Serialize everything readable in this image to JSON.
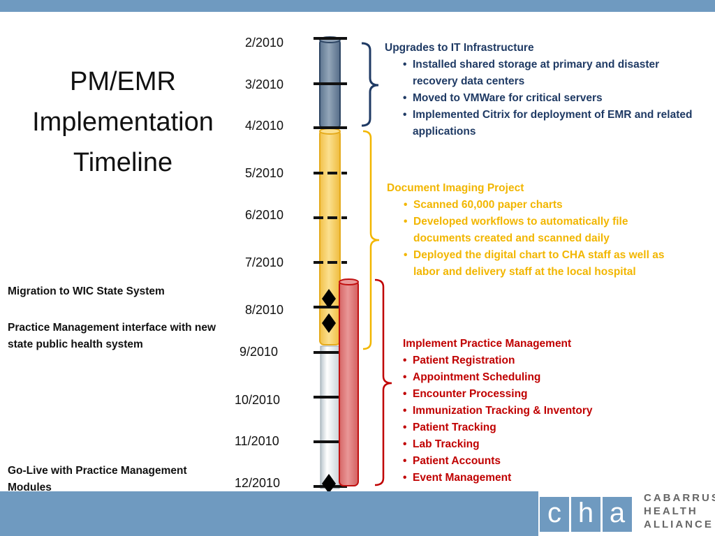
{
  "slide": {
    "title_lines": [
      "PM/EMR",
      "Implementation",
      "Timeline"
    ]
  },
  "timeline": {
    "dates": [
      "2/2010",
      "3/2010",
      "4/2010",
      "5/2010",
      "6/2010",
      "7/2010",
      "8/2010",
      "9/2010",
      "10/2010",
      "11/2010",
      "12/2010"
    ]
  },
  "phases": {
    "it_infrastructure": {
      "title": "Upgrades to IT Infrastructure",
      "items": [
        "Installed shared storage at primary and disaster recovery data centers",
        "Moved to VMWare for critical servers",
        "Implemented Citrix for deployment of EMR and related applications"
      ],
      "color": "#4d6582"
    },
    "document_imaging": {
      "title": "Document Imaging Project",
      "items": [
        "Scanned 60,000 paper charts",
        "Developed workflows to automatically file documents created and scanned daily",
        "Deployed the digital chart to CHA staff as well as labor and delivery staff at the local hospital"
      ],
      "color": "#f7c545"
    },
    "practice_management": {
      "title": "Implement Practice Management",
      "items": [
        "Patient Registration",
        "Appointment Scheduling",
        "Encounter Processing",
        "Immunization Tracking & Inventory",
        "Patient Tracking",
        "Lab Tracking",
        "Patient Accounts",
        "Event Management"
      ],
      "color": "#dd7070"
    }
  },
  "milestones": {
    "wic": "Migration to WIC State System",
    "interface": "Practice Management interface with new state public health system",
    "golive": "Go-Live with Practice Management Modules"
  },
  "logo": {
    "letters": [
      "c",
      "h",
      "a"
    ],
    "text_lines": [
      "CABARRUS",
      "HEALTH",
      "ALLIANCE"
    ]
  },
  "colors": {
    "band": "#6f9ac0",
    "blue_text": "#1f3a64",
    "gold_text": "#f2b600",
    "red_text": "#c00000"
  }
}
